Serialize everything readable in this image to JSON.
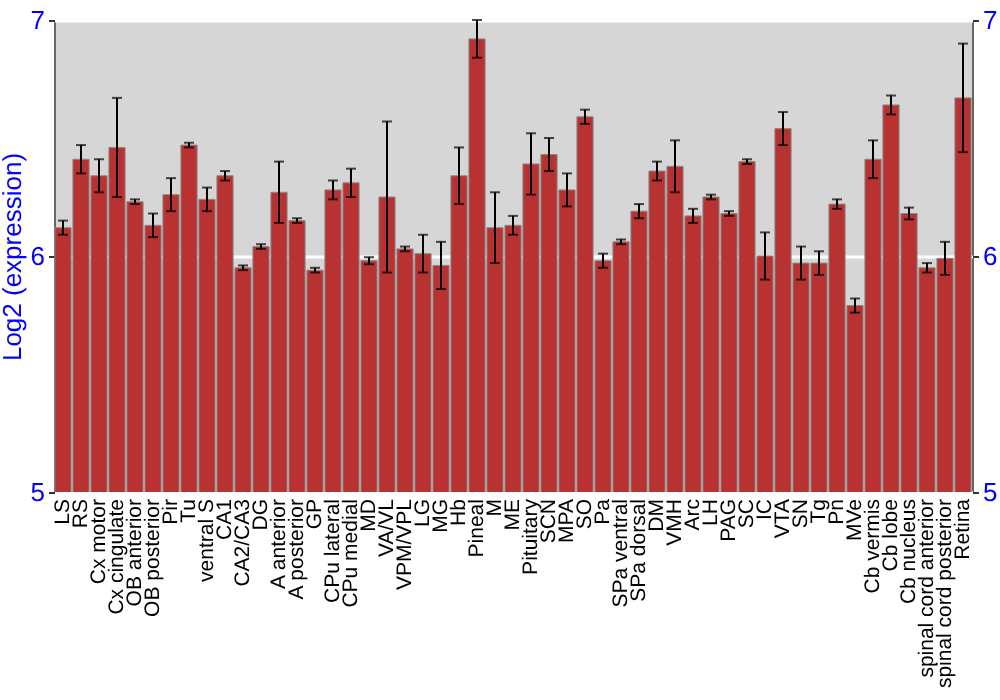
{
  "chart_data": {
    "type": "bar",
    "ylabel": "Log2 (expression)",
    "categories": [
      "LS",
      "RS",
      "Cx motor",
      "Cx cingulate",
      "OB anterior",
      "OB posterior",
      "Pir",
      "Tu",
      "ventral S",
      "CA1",
      "CA2/CA3",
      "DG",
      "A anterior",
      "A posterior",
      "GP",
      "CPu lateral",
      "CPu medial",
      "MD",
      "VA/VL",
      "VPM/VPL",
      "LG",
      "MG",
      "Hb",
      "Pineal",
      "M",
      "ME",
      "Pituitary",
      "SCN",
      "MPA",
      "SO",
      "Pa",
      "SPa ventral",
      "SPa dorsal",
      "DM",
      "VMH",
      "Arc",
      "LH",
      "PAG",
      "SC",
      "IC",
      "VTA",
      "SN",
      "Tg",
      "Pn",
      "MVe",
      "Cb vermis",
      "Cb lobe",
      "Cb nucleus",
      "spinal cord anterior",
      "spinal cord posterior",
      "Retina"
    ],
    "values": [
      6.12,
      6.41,
      6.34,
      6.46,
      6.23,
      6.13,
      6.26,
      6.47,
      6.24,
      6.34,
      5.95,
      6.04,
      6.27,
      6.15,
      5.94,
      6.28,
      6.31,
      5.98,
      6.25,
      6.03,
      6.01,
      5.96,
      6.34,
      6.92,
      6.12,
      6.13,
      6.39,
      6.43,
      6.28,
      6.59,
      5.98,
      6.06,
      6.19,
      6.36,
      6.38,
      6.17,
      6.25,
      6.18,
      6.4,
      6.0,
      6.54,
      5.97,
      5.97,
      6.22,
      5.79,
      6.41,
      6.64,
      6.18,
      5.95,
      5.99,
      6.67
    ],
    "errors": [
      0.03,
      0.06,
      0.07,
      0.21,
      0.01,
      0.05,
      0.07,
      0.01,
      0.05,
      0.02,
      0.01,
      0.01,
      0.13,
      0.01,
      0.01,
      0.04,
      0.06,
      0.015,
      0.32,
      0.01,
      0.08,
      0.1,
      0.12,
      0.08,
      0.15,
      0.04,
      0.13,
      0.07,
      0.07,
      0.03,
      0.03,
      0.01,
      0.03,
      0.04,
      0.11,
      0.03,
      0.01,
      0.01,
      0.01,
      0.1,
      0.07,
      0.07,
      0.05,
      0.02,
      0.03,
      0.08,
      0.04,
      0.025,
      0.02,
      0.07,
      0.23
    ],
    "color": "#b83232",
    "ylim": [
      5,
      7
    ],
    "yticks": [
      5,
      6,
      7
    ],
    "y2lim": [
      5,
      7
    ],
    "y2ticks": [
      5,
      6,
      7
    ],
    "grid": "y"
  }
}
